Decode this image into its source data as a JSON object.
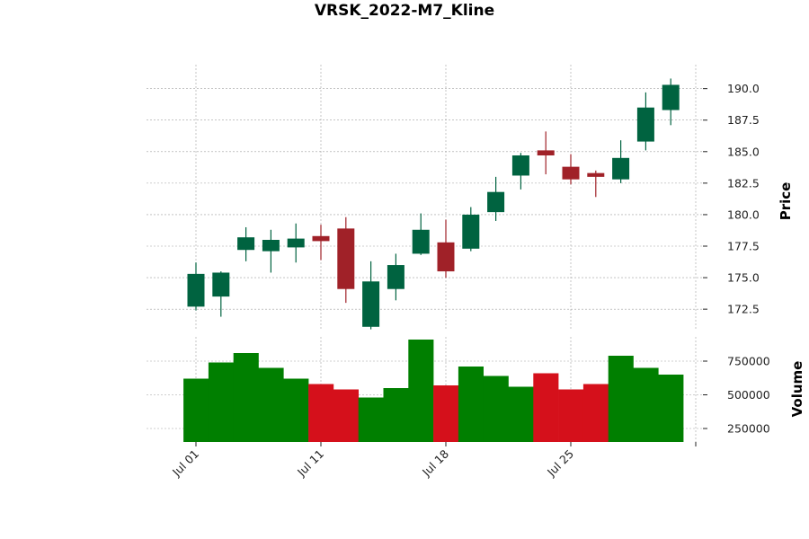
{
  "chart_data": {
    "type": "candlestick",
    "title": "VRSK_2022-M7_Kline",
    "price_label": "Price",
    "volume_label": "Volume",
    "colors": {
      "up": "#006340",
      "down": "#a02128",
      "vol_up": "#007f00",
      "vol_down": "#d5101b"
    },
    "price_ylim": [
      170.8,
      191.9
    ],
    "price_ticks": [
      "172.5",
      "175.0",
      "177.5",
      "180.0",
      "182.5",
      "185.0",
      "187.5",
      "190.0"
    ],
    "volume_ylim": [
      150000,
      930000
    ],
    "volume_ticks": [
      "250000",
      "500000",
      "750000"
    ],
    "x_ticks": [
      {
        "index": 0,
        "label": "Jul 01"
      },
      {
        "index": 5,
        "label": "Jul 11"
      },
      {
        "index": 10,
        "label": "Jul 18"
      },
      {
        "index": 15,
        "label": "Jul 25"
      },
      {
        "index": 20,
        "label": ""
      }
    ],
    "candles": [
      {
        "date": "2022-07-01",
        "open": 172.7,
        "high": 176.2,
        "low": 172.4,
        "close": 175.3,
        "volume": 620000
      },
      {
        "date": "2022-07-05",
        "open": 173.5,
        "high": 175.5,
        "low": 171.9,
        "close": 175.4,
        "volume": 740000
      },
      {
        "date": "2022-07-06",
        "open": 177.2,
        "high": 179.0,
        "low": 176.3,
        "close": 178.2,
        "volume": 810000
      },
      {
        "date": "2022-07-07",
        "open": 177.1,
        "high": 178.8,
        "low": 175.4,
        "close": 178.0,
        "volume": 700000
      },
      {
        "date": "2022-07-08",
        "open": 177.4,
        "high": 179.3,
        "low": 176.2,
        "close": 178.1,
        "volume": 620000
      },
      {
        "date": "2022-07-11",
        "open": 178.3,
        "high": 179.2,
        "low": 176.4,
        "close": 177.9,
        "volume": 580000
      },
      {
        "date": "2022-07-12",
        "open": 178.9,
        "high": 179.8,
        "low": 173.0,
        "close": 174.1,
        "volume": 540000
      },
      {
        "date": "2022-07-13",
        "open": 171.1,
        "high": 176.3,
        "low": 170.9,
        "close": 174.7,
        "volume": 480000
      },
      {
        "date": "2022-07-14",
        "open": 174.1,
        "high": 176.9,
        "low": 173.2,
        "close": 176.0,
        "volume": 550000
      },
      {
        "date": "2022-07-15",
        "open": 176.9,
        "high": 180.1,
        "low": 176.8,
        "close": 178.8,
        "volume": 910000
      },
      {
        "date": "2022-07-18",
        "open": 177.8,
        "high": 179.6,
        "low": 175.0,
        "close": 175.5,
        "volume": 570000
      },
      {
        "date": "2022-07-19",
        "open": 177.3,
        "high": 180.6,
        "low": 177.1,
        "close": 180.0,
        "volume": 710000
      },
      {
        "date": "2022-07-20",
        "open": 180.2,
        "high": 183.0,
        "low": 179.5,
        "close": 181.8,
        "volume": 640000
      },
      {
        "date": "2022-07-21",
        "open": 183.1,
        "high": 184.9,
        "low": 182.0,
        "close": 184.7,
        "volume": 560000
      },
      {
        "date": "2022-07-22",
        "open": 185.1,
        "high": 186.6,
        "low": 183.2,
        "close": 184.7,
        "volume": 660000
      },
      {
        "date": "2022-07-25",
        "open": 183.8,
        "high": 184.8,
        "low": 182.4,
        "close": 182.8,
        "volume": 540000
      },
      {
        "date": "2022-07-26",
        "open": 183.3,
        "high": 183.5,
        "low": 181.4,
        "close": 183.0,
        "volume": 580000
      },
      {
        "date": "2022-07-27",
        "open": 182.8,
        "high": 185.9,
        "low": 182.5,
        "close": 184.5,
        "volume": 790000
      },
      {
        "date": "2022-07-28",
        "open": 185.8,
        "high": 189.7,
        "low": 185.1,
        "close": 188.5,
        "volume": 700000
      },
      {
        "date": "2022-07-29",
        "open": 188.3,
        "high": 190.8,
        "low": 187.1,
        "close": 190.3,
        "volume": 650000
      }
    ]
  }
}
